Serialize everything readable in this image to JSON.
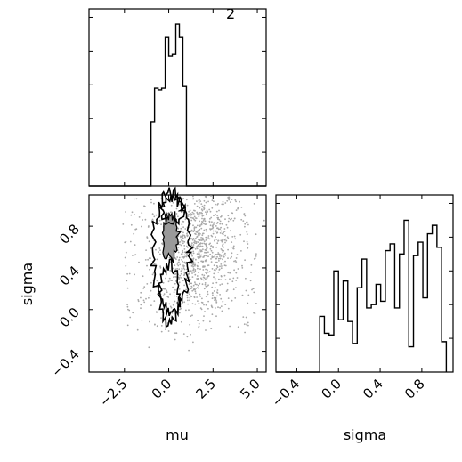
{
  "chart_data": [
    {
      "panel": "mu-histogram",
      "type": "bar",
      "histtype": "step",
      "corner_label": "2",
      "xlim": [
        -4.5,
        5.5
      ],
      "bins": [
        {
          "x0": -1.0,
          "x1": -0.8,
          "count": 3.8
        },
        {
          "x0": -0.8,
          "x1": -0.6,
          "count": 5.8
        },
        {
          "x0": -0.6,
          "x1": -0.4,
          "count": 5.7
        },
        {
          "x0": -0.4,
          "x1": -0.2,
          "count": 5.8
        },
        {
          "x0": -0.2,
          "x1": 0.0,
          "count": 8.8
        },
        {
          "x0": 0.0,
          "x1": 0.2,
          "count": 7.7
        },
        {
          "x0": 0.2,
          "x1": 0.4,
          "count": 7.8
        },
        {
          "x0": 0.4,
          "x1": 0.6,
          "count": 9.6
        },
        {
          "x0": 0.6,
          "x1": 0.8,
          "count": 8.8
        },
        {
          "x0": 0.8,
          "x1": 1.0,
          "count": 5.9
        }
      ],
      "ymax": 10.5
    },
    {
      "panel": "mu-sigma-scatter",
      "type": "scatter",
      "xlabel": "mu",
      "ylabel": "sigma",
      "xlim": [
        -4.5,
        5.5
      ],
      "ylim": [
        -0.6,
        1.1
      ],
      "xticks": [
        "−2.5",
        "0.0",
        "2.5",
        "5.0"
      ],
      "xtick_values": [
        -2.5,
        0.0,
        2.5,
        5.0
      ],
      "yticks": [
        "−0.4",
        "0.0",
        "0.4",
        "0.8"
      ],
      "ytick_values": [
        -0.4,
        0.0,
        0.4,
        0.8
      ],
      "contour_levels": [
        "outer",
        "inner"
      ]
    },
    {
      "panel": "sigma-histogram",
      "type": "bar",
      "histtype": "step",
      "xlabel": "sigma",
      "xlim": [
        -0.6,
        1.1
      ],
      "xticks": [
        "−0.4",
        "0.0",
        "0.4",
        "0.8"
      ],
      "xtick_values": [
        -0.4,
        0.0,
        0.4,
        0.8
      ],
      "ymax": 10.5,
      "bins": [
        {
          "x0": -0.18,
          "x1": -0.135,
          "count": 3.3
        },
        {
          "x0": -0.135,
          "x1": -0.09,
          "count": 2.3
        },
        {
          "x0": -0.09,
          "x1": -0.045,
          "count": 2.2
        },
        {
          "x0": -0.045,
          "x1": 0.0,
          "count": 6.0
        },
        {
          "x0": 0.0,
          "x1": 0.045,
          "count": 3.1
        },
        {
          "x0": 0.045,
          "x1": 0.09,
          "count": 5.4
        },
        {
          "x0": 0.09,
          "x1": 0.135,
          "count": 3.0
        },
        {
          "x0": 0.135,
          "x1": 0.18,
          "count": 1.7
        },
        {
          "x0": 0.18,
          "x1": 0.225,
          "count": 5.0
        },
        {
          "x0": 0.225,
          "x1": 0.27,
          "count": 6.7
        },
        {
          "x0": 0.27,
          "x1": 0.315,
          "count": 3.8
        },
        {
          "x0": 0.315,
          "x1": 0.36,
          "count": 4.0
        },
        {
          "x0": 0.36,
          "x1": 0.405,
          "count": 5.2
        },
        {
          "x0": 0.405,
          "x1": 0.45,
          "count": 4.2
        },
        {
          "x0": 0.45,
          "x1": 0.495,
          "count": 7.2
        },
        {
          "x0": 0.495,
          "x1": 0.54,
          "count": 7.6
        },
        {
          "x0": 0.54,
          "x1": 0.585,
          "count": 3.8
        },
        {
          "x0": 0.585,
          "x1": 0.63,
          "count": 7.0
        },
        {
          "x0": 0.63,
          "x1": 0.675,
          "count": 9.0
        },
        {
          "x0": 0.675,
          "x1": 0.72,
          "count": 1.5
        },
        {
          "x0": 0.72,
          "x1": 0.765,
          "count": 6.9
        },
        {
          "x0": 0.765,
          "x1": 0.81,
          "count": 7.7
        },
        {
          "x0": 0.81,
          "x1": 0.855,
          "count": 4.4
        },
        {
          "x0": 0.855,
          "x1": 0.9,
          "count": 8.2
        },
        {
          "x0": 0.9,
          "x1": 0.945,
          "count": 8.7
        },
        {
          "x0": 0.945,
          "x1": 0.99,
          "count": 7.4
        },
        {
          "x0": 0.99,
          "x1": 1.035,
          "count": 1.8
        }
      ]
    }
  ]
}
